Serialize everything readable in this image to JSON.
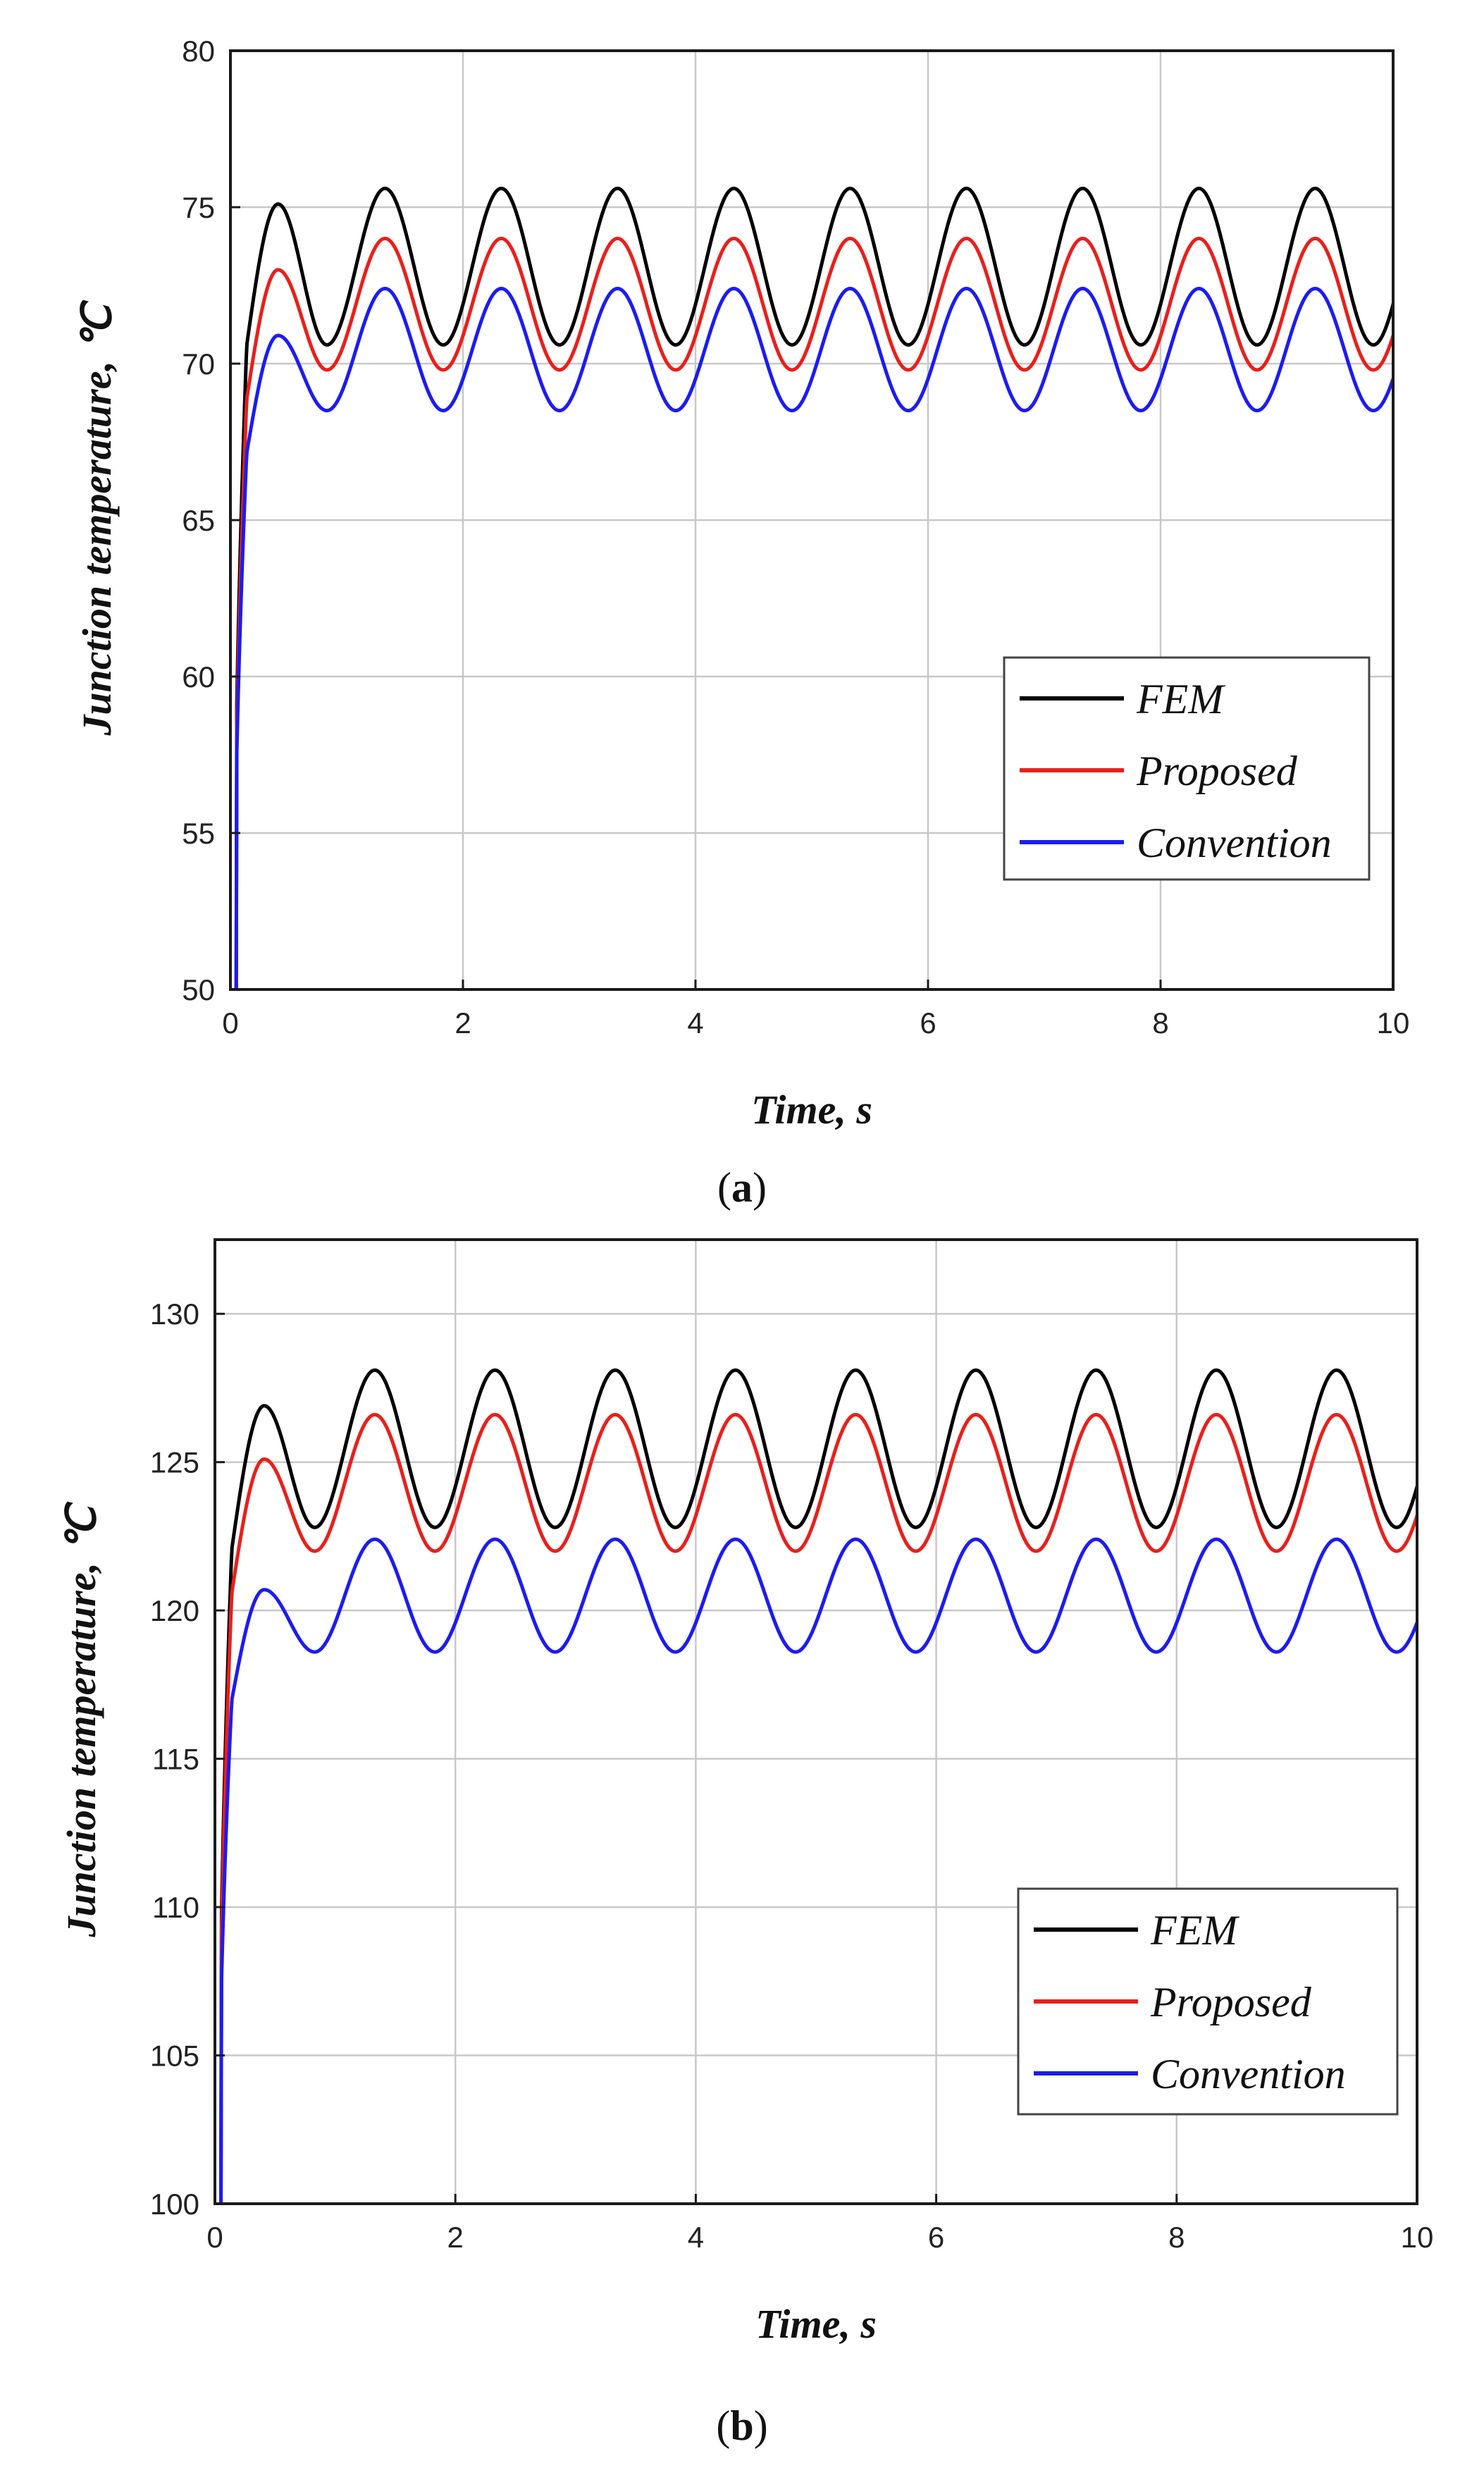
{
  "chart_data": [
    {
      "id": "a",
      "type": "line",
      "caption_letter": "a",
      "xlabel": "Time, s",
      "ylabel": "Junction temperature, ℃",
      "xlim": [
        0,
        10
      ],
      "ylim": [
        50,
        80
      ],
      "xticks": [
        0,
        2,
        4,
        6,
        8,
        10
      ],
      "xtick_labels": [
        "0",
        "2",
        "4",
        "6",
        "8",
        "10"
      ],
      "yticks": [
        50,
        55,
        60,
        65,
        70,
        75,
        80
      ],
      "ytick_labels": [
        "50",
        "55",
        "60",
        "65",
        "70",
        "75",
        "80"
      ],
      "grid": true,
      "legend_position": "bottom-right",
      "series": [
        {
          "name": "FEM",
          "color": "#000000",
          "start": 50,
          "first_peak": 75.1,
          "peak": 75.6,
          "trough": 70.6
        },
        {
          "name": "Proposed",
          "color": "#e8201c",
          "start": 50,
          "first_peak": 73.0,
          "peak": 74.0,
          "trough": 69.8
        },
        {
          "name": "Convention",
          "color": "#1c1cf0",
          "start": 50,
          "first_peak": 70.9,
          "peak": 72.4,
          "trough": 68.5
        }
      ]
    },
    {
      "id": "b",
      "type": "line",
      "caption_letter": "b",
      "xlabel": "Time, s",
      "ylabel": "Junction temperature, ℃",
      "xlim": [
        0,
        10
      ],
      "ylim": [
        100,
        132.5
      ],
      "xticks": [
        0,
        2,
        4,
        6,
        8,
        10
      ],
      "xtick_labels": [
        "0",
        "2",
        "4",
        "6",
        "8",
        "10"
      ],
      "yticks": [
        100,
        105,
        110,
        115,
        120,
        125,
        130
      ],
      "ytick_labels": [
        "100",
        "105",
        "110",
        "115",
        "120",
        "125",
        "130"
      ],
      "grid": true,
      "legend_position": "bottom-right",
      "series": [
        {
          "name": "FEM",
          "color": "#000000",
          "start": 100,
          "first_peak": 126.9,
          "peak": 128.1,
          "trough": 122.8
        },
        {
          "name": "Proposed",
          "color": "#e8201c",
          "start": 100,
          "first_peak": 125.1,
          "peak": 126.6,
          "trough": 122.0
        },
        {
          "name": "Convention",
          "color": "#1c1cf0",
          "start": 100,
          "first_peak": 120.7,
          "peak": 122.4,
          "trough": 118.6
        }
      ]
    }
  ]
}
